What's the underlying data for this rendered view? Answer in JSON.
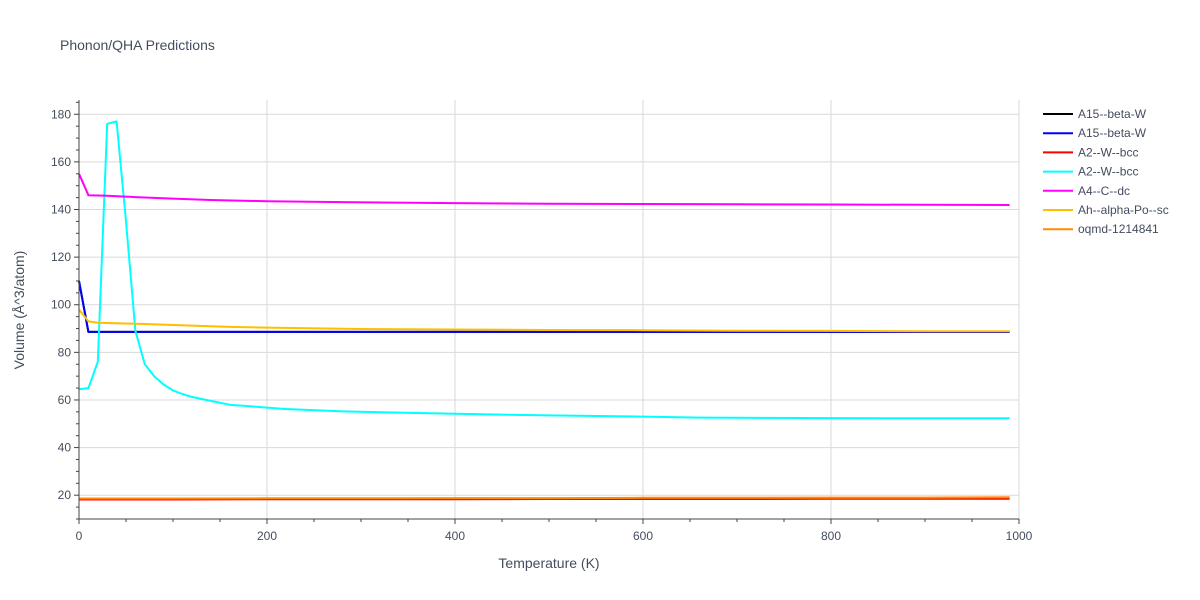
{
  "chart_data": {
    "type": "line",
    "title": "Phonon/QHA Predictions",
    "xlabel": "Temperature (K)",
    "ylabel": "Volume (Å^3/atom)",
    "xlim": [
      0,
      1000
    ],
    "ylim": [
      10,
      186
    ],
    "xticks": [
      0,
      200,
      400,
      600,
      800,
      1000
    ],
    "yticks": [
      20,
      40,
      60,
      80,
      100,
      120,
      140,
      160,
      180
    ],
    "grid": true,
    "legend_position": "right",
    "series": [
      {
        "name": "A15--beta-W",
        "color": "#000000",
        "x": [
          0,
          10,
          20,
          40,
          100,
          200,
          300,
          400,
          500,
          600,
          700,
          800,
          900,
          990
        ],
        "y": [
          110,
          88.6,
          88.6,
          88.6,
          88.6,
          88.6,
          88.6,
          88.6,
          88.6,
          88.6,
          88.6,
          88.6,
          88.6,
          88.6
        ]
      },
      {
        "name": "A15--beta-W",
        "color": "#0000ff",
        "x": [
          0,
          10,
          20,
          40,
          100,
          200,
          300,
          400,
          500,
          600,
          700,
          800,
          900,
          990
        ],
        "y": [
          110,
          88.6,
          88.6,
          88.6,
          88.6,
          88.6,
          88.6,
          88.6,
          88.6,
          88.6,
          88.6,
          88.6,
          88.6,
          88.6
        ]
      },
      {
        "name": "A2--W--bcc",
        "color": "#ff0000",
        "x": [
          0,
          100,
          200,
          300,
          400,
          500,
          600,
          700,
          800,
          900,
          990
        ],
        "y": [
          18.2,
          18.2,
          18.3,
          18.3,
          18.3,
          18.4,
          18.4,
          18.4,
          18.5,
          18.5,
          18.5
        ]
      },
      {
        "name": "A2--W--bcc",
        "color": "#00ffff",
        "x": [
          0,
          10,
          20,
          30,
          40,
          50,
          60,
          70,
          80,
          90,
          100,
          110,
          120,
          140,
          160,
          200,
          220,
          280,
          400,
          500,
          600,
          660,
          800,
          900,
          990
        ],
        "y": [
          64.5,
          65,
          76,
          176,
          177,
          135,
          89,
          75,
          70,
          66.5,
          64,
          62.5,
          61.3,
          59.6,
          58,
          56.8,
          56.2,
          55.2,
          54.2,
          53.5,
          53,
          52.6,
          52.4,
          52.3,
          52.3
        ]
      },
      {
        "name": "A4--C--dc",
        "color": "#ff00ff",
        "x": [
          0,
          10,
          30,
          60,
          100,
          140,
          200,
          280,
          400,
          500,
          600,
          700,
          800,
          900,
          990
        ],
        "y": [
          155,
          146,
          145.8,
          145.2,
          144.6,
          144,
          143.5,
          143.1,
          142.7,
          142.4,
          142.3,
          142.2,
          142.1,
          142.0,
          141.9
        ]
      },
      {
        "name": "Ah--alpha-Po--sc",
        "color": "#ffbf00",
        "x": [
          0,
          10,
          20,
          40,
          70,
          100,
          160,
          200,
          300,
          400,
          500,
          600,
          700,
          800,
          900,
          990
        ],
        "y": [
          98,
          93,
          92.4,
          92.2,
          91.9,
          91.5,
          90.7,
          90.4,
          89.8,
          89.6,
          89.4,
          89.3,
          89.1,
          89.0,
          88.9,
          88.9
        ]
      },
      {
        "name": "oqmd-1214841",
        "color": "#ff8c00",
        "x": [
          0,
          100,
          200,
          300,
          400,
          500,
          600,
          700,
          800,
          900,
          990
        ],
        "y": [
          18.6,
          18.6,
          18.7,
          18.7,
          18.8,
          18.8,
          18.9,
          18.9,
          19.0,
          19.0,
          19.1
        ]
      }
    ]
  }
}
